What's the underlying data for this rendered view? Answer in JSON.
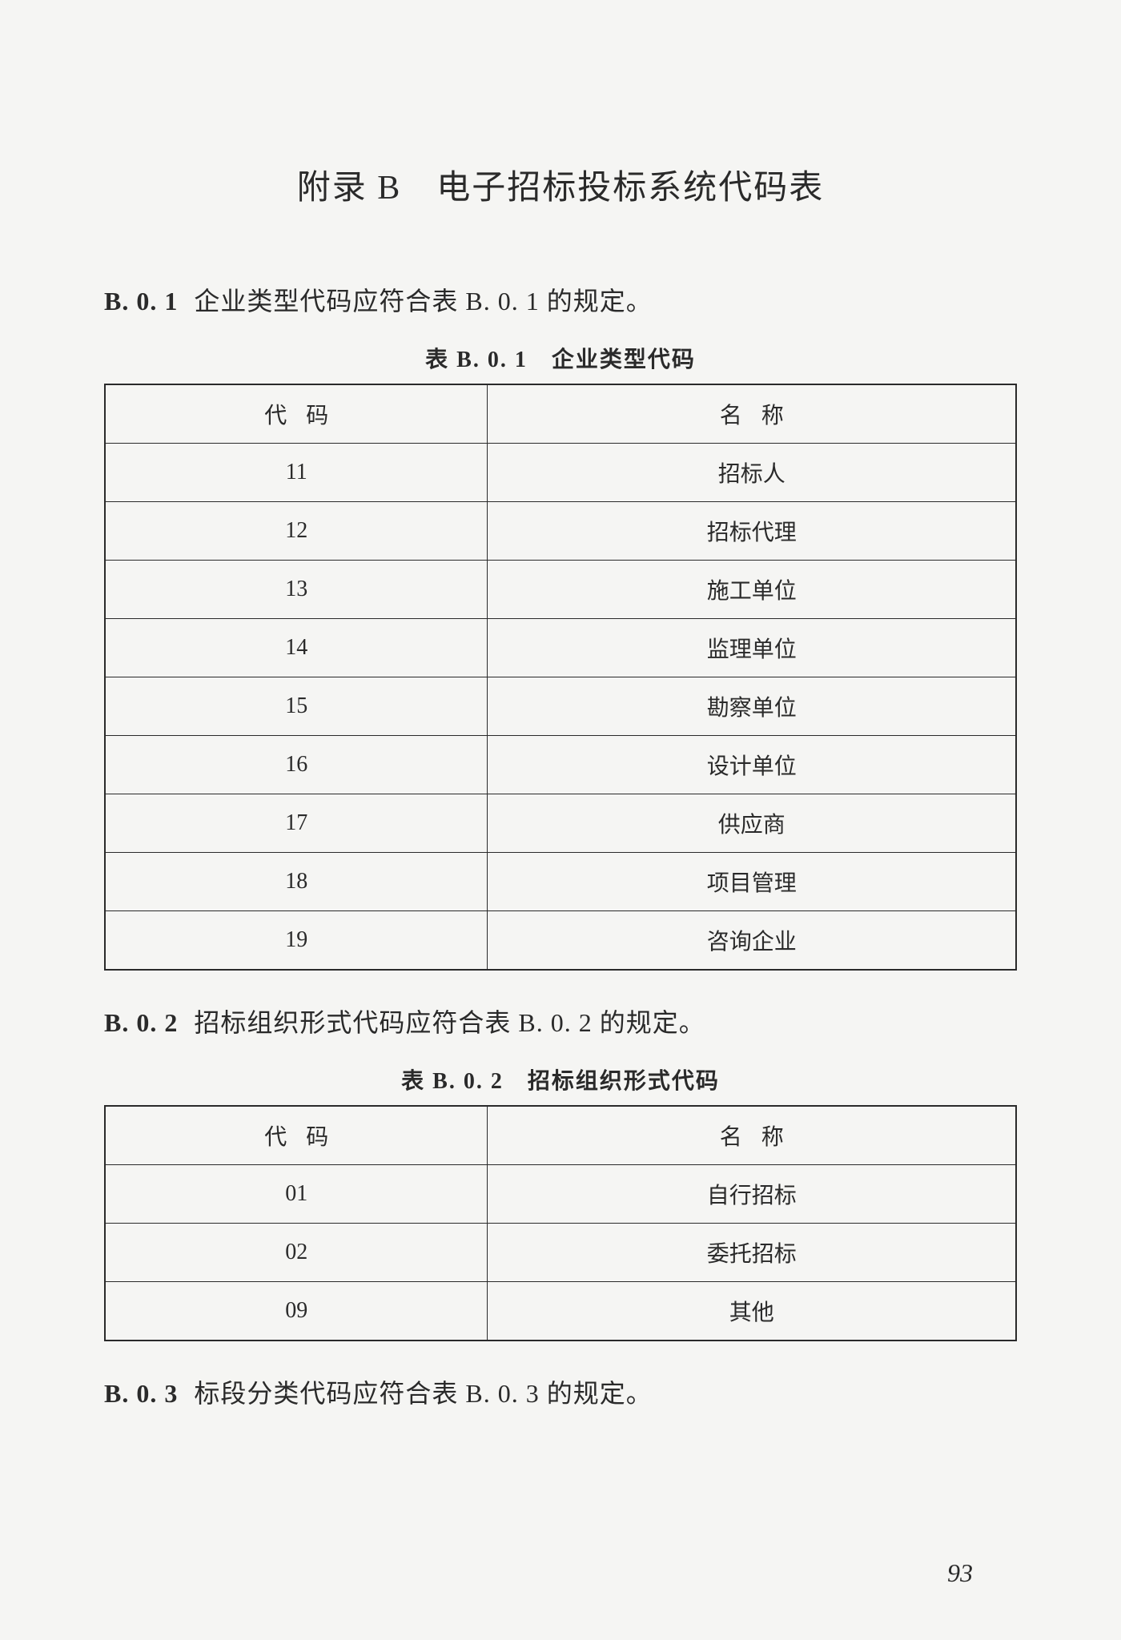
{
  "page": {
    "title": "附录 B　电子招标投标系统代码表",
    "number": "93"
  },
  "sections": [
    {
      "num": "B. 0. 1",
      "text": "企业类型代码应符合表 B. 0. 1 的规定。",
      "caption": "表 B. 0. 1　企业类型代码",
      "columns": [
        "代码",
        "名称"
      ],
      "rows": [
        [
          "11",
          "招标人"
        ],
        [
          "12",
          "招标代理"
        ],
        [
          "13",
          "施工单位"
        ],
        [
          "14",
          "监理单位"
        ],
        [
          "15",
          "勘察单位"
        ],
        [
          "16",
          "设计单位"
        ],
        [
          "17",
          "供应商"
        ],
        [
          "18",
          "项目管理"
        ],
        [
          "19",
          "咨询企业"
        ]
      ]
    },
    {
      "num": "B. 0. 2",
      "text": "招标组织形式代码应符合表 B. 0. 2 的规定。",
      "caption": "表 B. 0. 2　招标组织形式代码",
      "columns": [
        "代码",
        "名称"
      ],
      "rows": [
        [
          "01",
          "自行招标"
        ],
        [
          "02",
          "委托招标"
        ],
        [
          "09",
          "其他"
        ]
      ]
    },
    {
      "num": "B. 0. 3",
      "text": "标段分类代码应符合表 B. 0. 3 的规定。"
    }
  ],
  "style": {
    "background_color": "#f5f5f3",
    "text_color": "#2a2a2a",
    "border_color": "#2a2a2a",
    "title_fontsize": 42,
    "section_fontsize": 32,
    "caption_fontsize": 28,
    "cell_fontsize": 28,
    "page_number_fontsize": 32
  }
}
